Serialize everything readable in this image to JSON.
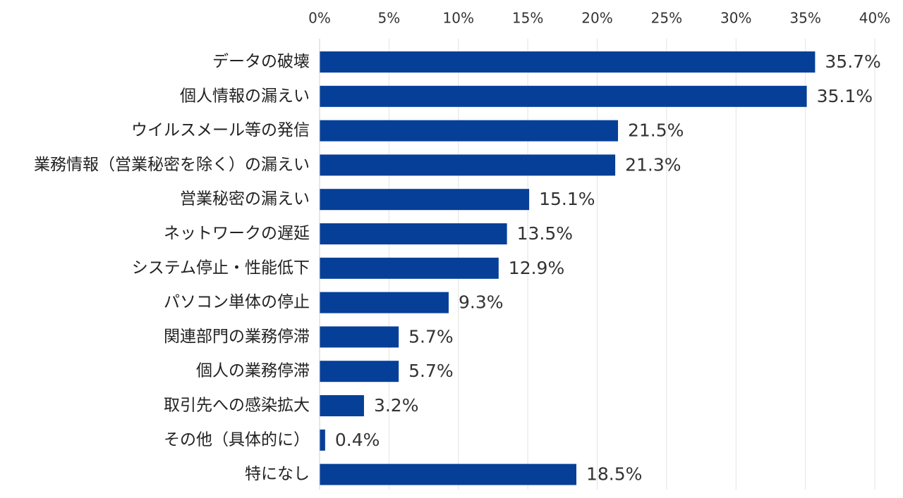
{
  "chart_data": {
    "type": "bar",
    "orientation": "horizontal",
    "title": "",
    "xlabel": "",
    "ylabel": "",
    "xlim": [
      0,
      40
    ],
    "tick_values": [
      0,
      5,
      10,
      15,
      20,
      25,
      30,
      35,
      40
    ],
    "tick_labels": [
      "0%",
      "5%",
      "10%",
      "15%",
      "20%",
      "25%",
      "30%",
      "35%",
      "40%"
    ],
    "tick_position": "top",
    "grid": true,
    "legend": "none",
    "bar_color": "#063f98",
    "categories": [
      "データの破壊",
      "個人情報の漏えい",
      "ウイルスメール等の発信",
      "業務情報（営業秘密を除く）の漏えい",
      "営業秘密の漏えい",
      "ネットワークの遅延",
      "システム停止・性能低下",
      "パソコン単体の停止",
      "関連部門の業務停滞",
      "個人の業務停滞",
      "取引先への感染拡大",
      "その他（具体的に）",
      "特になし"
    ],
    "values": [
      35.7,
      35.1,
      21.5,
      21.3,
      15.1,
      13.5,
      12.9,
      9.3,
      5.7,
      5.7,
      3.2,
      0.4,
      18.5
    ],
    "value_labels": [
      "35.7%",
      "35.1%",
      "21.5%",
      "21.3%",
      "15.1%",
      "13.5%",
      "12.9%",
      "9.3%",
      "5.7%",
      "5.7%",
      "3.2%",
      "0.4%",
      "18.5%"
    ]
  }
}
